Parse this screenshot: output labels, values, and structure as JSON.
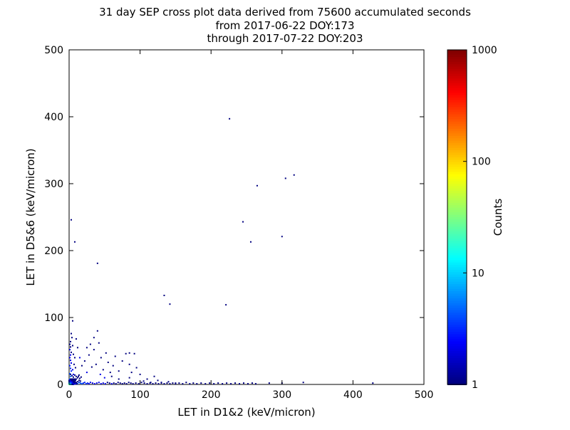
{
  "chart_data": {
    "type": "scatter",
    "title": "31 day SEP cross plot data derived from 75600 accumulated seconds",
    "subtitle_from": "from 2017-06-22 DOY:173",
    "subtitle_through": "through 2017-07-22 DOY:203",
    "xlabel": "LET in D1&2 (keV/micron)",
    "ylabel": "LET in D5&6 (keV/micron)",
    "xlim": [
      0,
      500
    ],
    "ylim": [
      0,
      500
    ],
    "xticks": [
      0,
      100,
      200,
      300,
      400,
      500
    ],
    "yticks": [
      0,
      100,
      200,
      300,
      400,
      500
    ],
    "grid": false,
    "background_color": "#ffffff",
    "colorbar": {
      "label": "Counts",
      "scale": "log",
      "min": 1,
      "max": 1000,
      "ticks": [
        1,
        10,
        100,
        1000
      ],
      "colormap": "jet"
    },
    "points_format": [
      "x",
      "y",
      "count"
    ],
    "points": [
      [
        226,
        397,
        1
      ],
      [
        265,
        297,
        1
      ],
      [
        305,
        308,
        1
      ],
      [
        317,
        313,
        1
      ],
      [
        245,
        243,
        1
      ],
      [
        256,
        213,
        1
      ],
      [
        300,
        221,
        1
      ],
      [
        221,
        119,
        1
      ],
      [
        142,
        120,
        1
      ],
      [
        134,
        133,
        1
      ],
      [
        40,
        181,
        1
      ],
      [
        8,
        213,
        1
      ],
      [
        3,
        246,
        1
      ],
      [
        5,
        95,
        1
      ],
      [
        18,
        28,
        1
      ],
      [
        22,
        35,
        1
      ],
      [
        25,
        18,
        2
      ],
      [
        28,
        44,
        1
      ],
      [
        32,
        26,
        1
      ],
      [
        35,
        52,
        1
      ],
      [
        38,
        30,
        1
      ],
      [
        40,
        80,
        1
      ],
      [
        42,
        62,
        1
      ],
      [
        45,
        40,
        1
      ],
      [
        48,
        22,
        1
      ],
      [
        52,
        47,
        1
      ],
      [
        55,
        33,
        1
      ],
      [
        58,
        18,
        1
      ],
      [
        62,
        28,
        1
      ],
      [
        65,
        42,
        1
      ],
      [
        70,
        20,
        1
      ],
      [
        75,
        35,
        1
      ],
      [
        80,
        46,
        1
      ],
      [
        85,
        30,
        1
      ],
      [
        88,
        18,
        1
      ],
      [
        92,
        46,
        1
      ],
      [
        95,
        25,
        1
      ],
      [
        30,
        60,
        1
      ],
      [
        35,
        70,
        1
      ],
      [
        25,
        55,
        1
      ],
      [
        15,
        40,
        2
      ],
      [
        12,
        55,
        1
      ],
      [
        10,
        68,
        1
      ],
      [
        44,
        15,
        2
      ],
      [
        50,
        10,
        2
      ],
      [
        60,
        12,
        1
      ],
      [
        70,
        8,
        1
      ],
      [
        85,
        10,
        1
      ],
      [
        100,
        15,
        1
      ],
      [
        110,
        8,
        1
      ],
      [
        120,
        12,
        1
      ],
      [
        105,
        5,
        1
      ],
      [
        115,
        3,
        1
      ],
      [
        125,
        6,
        1
      ],
      [
        130,
        3,
        1
      ],
      [
        140,
        4,
        1
      ],
      [
        150,
        2,
        1
      ],
      [
        85,
        47,
        1
      ],
      [
        1,
        8,
        8
      ],
      [
        2,
        12,
        5
      ],
      [
        1,
        16,
        4
      ],
      [
        3,
        20,
        3
      ],
      [
        2,
        24,
        3
      ],
      [
        1,
        28,
        3
      ],
      [
        3,
        32,
        2
      ],
      [
        2,
        36,
        2
      ],
      [
        1,
        40,
        2
      ],
      [
        2,
        44,
        2
      ],
      [
        3,
        48,
        1
      ],
      [
        1,
        52,
        2
      ],
      [
        2,
        56,
        1
      ],
      [
        1,
        60,
        1
      ],
      [
        2,
        64,
        1
      ],
      [
        4,
        70,
        1
      ],
      [
        3,
        76,
        1
      ],
      [
        5,
        58,
        1
      ],
      [
        6,
        45,
        1
      ],
      [
        7,
        30,
        1
      ],
      [
        5,
        22,
        2
      ],
      [
        6,
        15,
        2
      ],
      [
        8,
        40,
        1
      ],
      [
        9,
        25,
        1
      ],
      [
        8,
        1,
        8
      ],
      [
        10,
        2,
        6
      ],
      [
        12,
        1,
        5
      ],
      [
        14,
        3,
        4
      ],
      [
        16,
        2,
        4
      ],
      [
        18,
        1,
        4
      ],
      [
        20,
        2,
        3
      ],
      [
        22,
        3,
        3
      ],
      [
        24,
        1,
        3
      ],
      [
        26,
        2,
        3
      ],
      [
        28,
        1,
        2
      ],
      [
        30,
        3,
        2
      ],
      [
        33,
        2,
        2
      ],
      [
        36,
        1,
        2
      ],
      [
        39,
        2,
        2
      ],
      [
        42,
        3,
        2
      ],
      [
        45,
        1,
        2
      ],
      [
        48,
        2,
        2
      ],
      [
        51,
        1,
        2
      ],
      [
        54,
        3,
        1
      ],
      [
        57,
        2,
        1
      ],
      [
        60,
        1,
        2
      ],
      [
        63,
        2,
        1
      ],
      [
        66,
        1,
        1
      ],
      [
        69,
        3,
        1
      ],
      [
        72,
        2,
        1
      ],
      [
        75,
        1,
        1
      ],
      [
        78,
        2,
        1
      ],
      [
        81,
        1,
        1
      ],
      [
        84,
        3,
        1
      ],
      [
        87,
        2,
        1
      ],
      [
        90,
        1,
        1
      ],
      [
        94,
        2,
        1
      ],
      [
        98,
        1,
        1
      ],
      [
        102,
        3,
        1
      ],
      [
        106,
        2,
        1
      ],
      [
        110,
        1,
        1
      ],
      [
        114,
        2,
        1
      ],
      [
        118,
        1,
        1
      ],
      [
        122,
        2,
        1
      ],
      [
        126,
        1,
        1
      ],
      [
        130,
        2,
        1
      ],
      [
        134,
        1,
        1
      ],
      [
        138,
        2,
        1
      ],
      [
        142,
        1,
        1
      ],
      [
        146,
        2,
        1
      ],
      [
        150,
        1,
        1
      ],
      [
        155,
        2,
        1
      ],
      [
        160,
        1,
        1
      ],
      [
        165,
        3,
        1
      ],
      [
        170,
        1,
        1
      ],
      [
        175,
        2,
        1
      ],
      [
        180,
        1,
        1
      ],
      [
        186,
        2,
        1
      ],
      [
        192,
        1,
        1
      ],
      [
        198,
        2,
        1
      ],
      [
        204,
        1,
        1
      ],
      [
        210,
        2,
        1
      ],
      [
        216,
        1,
        1
      ],
      [
        222,
        2,
        1
      ],
      [
        228,
        1,
        1
      ],
      [
        234,
        2,
        1
      ],
      [
        240,
        1,
        1
      ],
      [
        246,
        2,
        1
      ],
      [
        252,
        1,
        1
      ],
      [
        258,
        2,
        1
      ],
      [
        263,
        1,
        1
      ],
      [
        282,
        2,
        1
      ],
      [
        300,
        2,
        1
      ],
      [
        330,
        3,
        1
      ],
      [
        428,
        2,
        1
      ],
      [
        0,
        0,
        30
      ],
      [
        1,
        0,
        20
      ],
      [
        0,
        1,
        18
      ],
      [
        1,
        1,
        15
      ],
      [
        2,
        0,
        12
      ],
      [
        0,
        2,
        11
      ],
      [
        2,
        1,
        10
      ],
      [
        1,
        2,
        10
      ],
      [
        2,
        2,
        8
      ],
      [
        3,
        0,
        8
      ],
      [
        0,
        3,
        8
      ],
      [
        3,
        1,
        7
      ],
      [
        1,
        3,
        6
      ],
      [
        3,
        2,
        6
      ],
      [
        2,
        3,
        5
      ],
      [
        3,
        3,
        5
      ],
      [
        4,
        0,
        5
      ],
      [
        0,
        4,
        5
      ],
      [
        4,
        1,
        4
      ],
      [
        1,
        4,
        4
      ],
      [
        4,
        2,
        4
      ],
      [
        2,
        4,
        4
      ],
      [
        4,
        3,
        3
      ],
      [
        3,
        4,
        3
      ],
      [
        4,
        4,
        3
      ],
      [
        5,
        0,
        3
      ],
      [
        0,
        5,
        3
      ],
      [
        5,
        1,
        3
      ],
      [
        1,
        5,
        3
      ],
      [
        5,
        2,
        2
      ],
      [
        2,
        5,
        2
      ],
      [
        5,
        3,
        2
      ],
      [
        3,
        5,
        2
      ],
      [
        5,
        5,
        2
      ],
      [
        6,
        0,
        2
      ],
      [
        0,
        6,
        2
      ],
      [
        6,
        2,
        2
      ],
      [
        2,
        6,
        2
      ],
      [
        6,
        4,
        1
      ],
      [
        4,
        6,
        1
      ],
      [
        6,
        6,
        1
      ],
      [
        7,
        1,
        2
      ],
      [
        1,
        7,
        2
      ],
      [
        7,
        3,
        1
      ],
      [
        3,
        7,
        1
      ],
      [
        7,
        5,
        1
      ],
      [
        5,
        7,
        1
      ],
      [
        7,
        7,
        1
      ],
      [
        8,
        2,
        1
      ],
      [
        2,
        8,
        1
      ],
      [
        8,
        4,
        1
      ],
      [
        4,
        8,
        1
      ],
      [
        8,
        6,
        1
      ],
      [
        6,
        8,
        1
      ],
      [
        8,
        8,
        1
      ],
      [
        9,
        1,
        2
      ],
      [
        10,
        3,
        1
      ],
      [
        11,
        1,
        1
      ],
      [
        12,
        4,
        1
      ],
      [
        9,
        6,
        1
      ],
      [
        10,
        8,
        1
      ],
      [
        12,
        10,
        1
      ],
      [
        14,
        6,
        1
      ],
      [
        13,
        12,
        1
      ],
      [
        15,
        9,
        1
      ],
      [
        10,
        12,
        1
      ],
      [
        8,
        14,
        1
      ],
      [
        6,
        11,
        1
      ],
      [
        4,
        13,
        1
      ],
      [
        2,
        15,
        1
      ],
      [
        14,
        14,
        1
      ],
      [
        16,
        5,
        1
      ],
      [
        17,
        11,
        1
      ]
    ]
  }
}
